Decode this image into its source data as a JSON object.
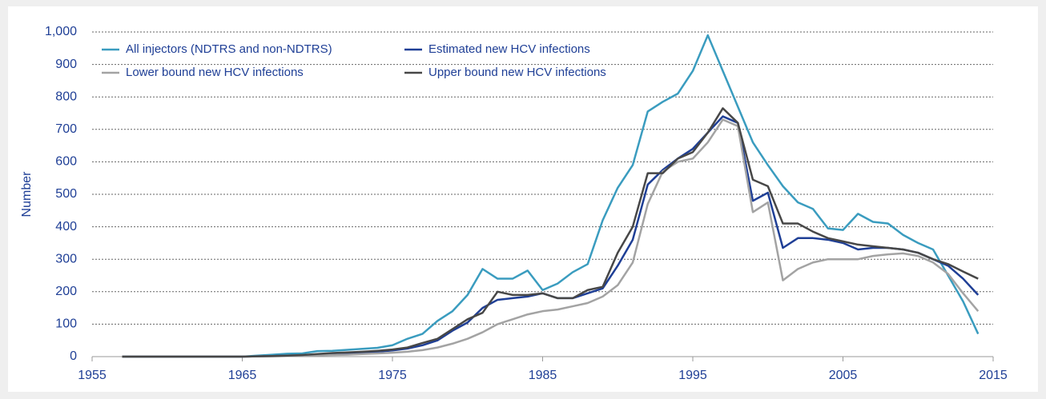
{
  "chart_data": {
    "type": "line",
    "ylabel": "Number",
    "x": [
      1957,
      1958,
      1959,
      1960,
      1961,
      1962,
      1963,
      1964,
      1965,
      1966,
      1967,
      1968,
      1969,
      1970,
      1971,
      1972,
      1973,
      1974,
      1975,
      1976,
      1977,
      1978,
      1979,
      1980,
      1981,
      1982,
      1983,
      1984,
      1985,
      1986,
      1987,
      1988,
      1989,
      1990,
      1991,
      1992,
      1993,
      1994,
      1995,
      1996,
      1997,
      1998,
      1999,
      2000,
      2001,
      2002,
      2003,
      2004,
      2005,
      2006,
      2007,
      2008,
      2009,
      2010,
      2011,
      2012,
      2013,
      2014
    ],
    "series": [
      {
        "name": "All injectors (NDTRS and non-NDTRS)",
        "color": "#3a9cbf",
        "values": [
          0,
          0,
          0,
          0,
          0,
          0,
          0,
          0,
          0,
          3,
          6,
          9,
          10,
          17,
          18,
          21,
          24,
          27,
          35,
          55,
          70,
          110,
          140,
          190,
          270,
          240,
          240,
          265,
          205,
          225,
          260,
          285,
          420,
          520,
          590,
          755,
          785,
          810,
          880,
          990,
          880,
          770,
          660,
          590,
          525,
          475,
          455,
          395,
          390,
          440,
          415,
          410,
          375,
          350,
          330,
          250,
          170,
          70
        ]
      },
      {
        "name": "Estimated new HCV infections",
        "color": "#1f3f96",
        "values": [
          0,
          0,
          0,
          0,
          0,
          0,
          0,
          0,
          0,
          1,
          2,
          3,
          4,
          6,
          9,
          11,
          13,
          15,
          19,
          25,
          35,
          50,
          80,
          105,
          150,
          175,
          180,
          185,
          195,
          180,
          180,
          195,
          210,
          280,
          360,
          530,
          575,
          610,
          640,
          690,
          740,
          720,
          480,
          505,
          335,
          365,
          365,
          360,
          350,
          330,
          335,
          335,
          330,
          320,
          300,
          280,
          240,
          190
        ]
      },
      {
        "name": "Lower bound new HCV infections",
        "color": "#a3a3a3",
        "values": [
          0,
          0,
          0,
          0,
          0,
          0,
          0,
          0,
          0,
          1,
          1,
          2,
          3,
          4,
          5,
          6,
          8,
          10,
          12,
          15,
          20,
          28,
          40,
          55,
          75,
          100,
          115,
          130,
          140,
          145,
          155,
          165,
          185,
          220,
          290,
          470,
          570,
          600,
          610,
          660,
          730,
          710,
          445,
          475,
          235,
          270,
          290,
          300,
          300,
          300,
          310,
          315,
          318,
          310,
          290,
          255,
          195,
          140
        ]
      },
      {
        "name": "Upper bound new HCV infections",
        "color": "#474747",
        "values": [
          0,
          0,
          0,
          0,
          0,
          0,
          0,
          0,
          0,
          1,
          2,
          3,
          5,
          8,
          11,
          13,
          15,
          18,
          22,
          28,
          42,
          55,
          85,
          115,
          135,
          200,
          190,
          190,
          195,
          180,
          180,
          205,
          215,
          320,
          400,
          565,
          565,
          610,
          630,
          690,
          765,
          720,
          545,
          525,
          410,
          410,
          385,
          365,
          355,
          345,
          340,
          335,
          330,
          320,
          300,
          285,
          262,
          240
        ]
      }
    ],
    "xlim": [
      1955,
      2015
    ],
    "xticks": [
      1955,
      1965,
      1975,
      1985,
      1995,
      2005,
      2015
    ],
    "ylim": [
      0,
      1000
    ],
    "yticks": [
      0,
      100,
      200,
      300,
      400,
      500,
      600,
      700,
      800,
      900,
      {
        "value": 1000,
        "label": "1,000"
      }
    ],
    "grid": true
  }
}
